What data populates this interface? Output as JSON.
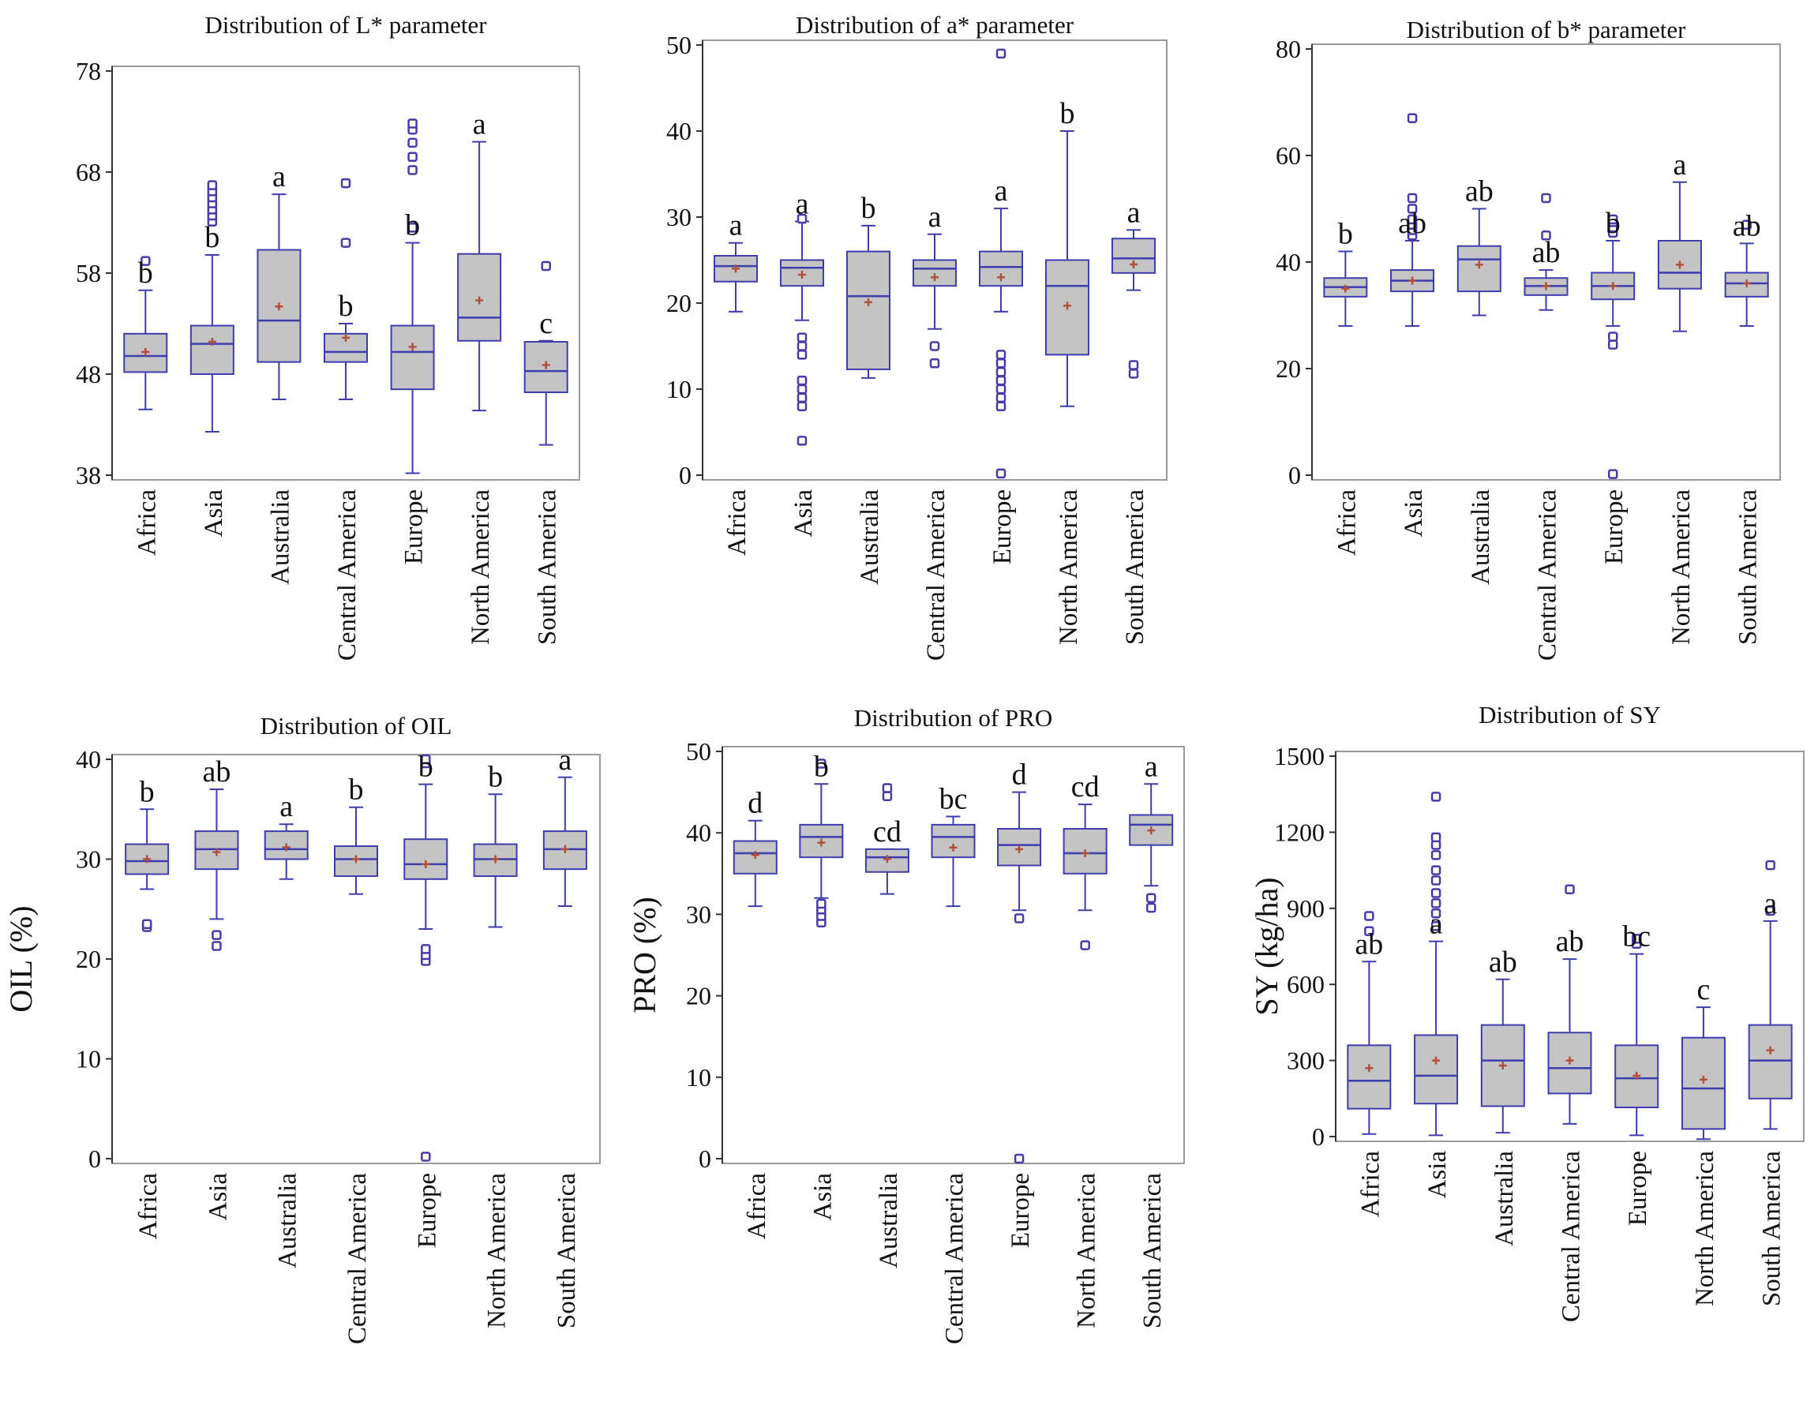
{
  "colors": {
    "box_fill": "#c4c4c4",
    "box_stroke": "#3d3dae",
    "outlier": "#4a3aa8",
    "mean": "#b0503c",
    "axis": "#333333",
    "frame": "#9a9a9a"
  },
  "chart_data": [
    {
      "type": "box",
      "title": "Distribution of  L* parameter",
      "ylabel": "",
      "ylim": [
        38,
        78
      ],
      "yticks": [
        "38",
        "48",
        "58",
        "68",
        "78"
      ],
      "categories": [
        "Africa",
        "Asia",
        "Australia",
        "Central America",
        "Europe",
        "North America",
        "South America"
      ],
      "boxes": [
        {
          "whisker_low": 44.5,
          "q1": 48.2,
          "median": 49.8,
          "q3": 52,
          "whisker_high": 56.3,
          "mean": 50.2,
          "outliers": [
            59.2
          ],
          "group": "b"
        },
        {
          "whisker_low": 42.3,
          "q1": 48,
          "median": 51,
          "q3": 52.8,
          "whisker_high": 59.8,
          "mean": 51.2,
          "outliers": [
            63.1,
            63.7,
            64.3,
            64.9,
            65.5,
            66.1,
            66.7
          ],
          "group": "b"
        },
        {
          "whisker_low": 45.5,
          "q1": 49.2,
          "median": 53.3,
          "q3": 60.3,
          "whisker_high": 65.8,
          "mean": 54.7,
          "outliers": [],
          "group": "a"
        },
        {
          "whisker_low": 45.5,
          "q1": 49.2,
          "median": 50.2,
          "q3": 52,
          "whisker_high": 53,
          "mean": 51.6,
          "outliers": [
            61,
            66.9
          ],
          "group": "b"
        },
        {
          "whisker_low": 38.2,
          "q1": 46.5,
          "median": 50.2,
          "q3": 52.8,
          "whisker_high": 61,
          "mean": 50.7,
          "outliers": [
            62.5,
            68.2,
            69.5,
            70.9,
            72.2,
            72.8
          ],
          "group": "b"
        },
        {
          "whisker_low": 44.4,
          "q1": 51.3,
          "median": 53.6,
          "q3": 59.9,
          "whisker_high": 71,
          "mean": 55.3,
          "outliers": [],
          "group": "a"
        },
        {
          "whisker_low": 41,
          "q1": 46.2,
          "median": 48.3,
          "q3": 51.2,
          "whisker_high": 51.3,
          "mean": 48.9,
          "outliers": [
            58.7
          ],
          "group": "c"
        }
      ]
    },
    {
      "type": "box",
      "title": "Distribution of a* parameter",
      "ylabel": "",
      "ylim": [
        0,
        50
      ],
      "yticks": [
        "0",
        "10",
        "20",
        "30",
        "40",
        "50"
      ],
      "categories": [
        "Africa",
        "Asia",
        "Australia",
        "Central America",
        "Europe",
        "North America",
        "South America"
      ],
      "boxes": [
        {
          "whisker_low": 19,
          "q1": 22.5,
          "median": 24.3,
          "q3": 25.5,
          "whisker_high": 27,
          "mean": 24,
          "outliers": [],
          "group": "a"
        },
        {
          "whisker_low": 18,
          "q1": 22,
          "median": 24.1,
          "q3": 25,
          "whisker_high": 29.5,
          "mean": 23.3,
          "outliers": [
            4,
            8,
            9,
            10,
            11,
            14,
            15,
            16,
            29.8
          ],
          "group": "a"
        },
        {
          "whisker_low": 11.3,
          "q1": 12.3,
          "median": 20.8,
          "q3": 26,
          "whisker_high": 29,
          "mean": 20.1,
          "outliers": [],
          "group": "b"
        },
        {
          "whisker_low": 17,
          "q1": 22,
          "median": 24,
          "q3": 25,
          "whisker_high": 28,
          "mean": 23,
          "outliers": [
            13,
            15
          ],
          "group": "a"
        },
        {
          "whisker_low": 19,
          "q1": 22,
          "median": 24.2,
          "q3": 26,
          "whisker_high": 31,
          "mean": 23,
          "outliers": [
            0.2,
            8,
            9,
            10,
            11,
            12,
            13,
            14,
            49
          ],
          "group": "a"
        },
        {
          "whisker_low": 8,
          "q1": 14,
          "median": 22,
          "q3": 25,
          "whisker_high": 40,
          "mean": 19.7,
          "outliers": [],
          "group": "b"
        },
        {
          "whisker_low": 21.5,
          "q1": 23.5,
          "median": 25.2,
          "q3": 27.5,
          "whisker_high": 28.5,
          "mean": 24.5,
          "outliers": [
            11.8,
            12.8
          ],
          "group": "a"
        }
      ]
    },
    {
      "type": "box",
      "title": "Distribution of b* parameter",
      "ylabel": "",
      "ylim": [
        0,
        80
      ],
      "yticks": [
        "0",
        "20",
        "40",
        "60",
        "80"
      ],
      "categories": [
        "Africa",
        "Asia",
        "Australia",
        "Central America",
        "Europe",
        "North America",
        "South America"
      ],
      "boxes": [
        {
          "whisker_low": 28,
          "q1": 33.5,
          "median": 35.3,
          "q3": 37,
          "whisker_high": 42,
          "mean": 35,
          "outliers": [],
          "group": "b"
        },
        {
          "whisker_low": 28,
          "q1": 34.5,
          "median": 36.5,
          "q3": 38.5,
          "whisker_high": 44,
          "mean": 36.5,
          "outliers": [
            45,
            46,
            47,
            48,
            50,
            52,
            67
          ],
          "group": "ab"
        },
        {
          "whisker_low": 30,
          "q1": 34.5,
          "median": 40.5,
          "q3": 43,
          "whisker_high": 50,
          "mean": 39.5,
          "outliers": [],
          "group": "ab"
        },
        {
          "whisker_low": 31,
          "q1": 33.8,
          "median": 35.5,
          "q3": 37,
          "whisker_high": 38.5,
          "mean": 35.5,
          "outliers": [
            45,
            52
          ],
          "group": "ab"
        },
        {
          "whisker_low": 28,
          "q1": 33,
          "median": 35.5,
          "q3": 38,
          "whisker_high": 44,
          "mean": 35.5,
          "outliers": [
            0.2,
            24.5,
            26,
            45.5,
            46.5,
            47.5,
            48
          ],
          "group": "b"
        },
        {
          "whisker_low": 27,
          "q1": 35,
          "median": 38,
          "q3": 44,
          "whisker_high": 55,
          "mean": 39.5,
          "outliers": [],
          "group": "a"
        },
        {
          "whisker_low": 28,
          "q1": 33.5,
          "median": 36,
          "q3": 38,
          "whisker_high": 43.5,
          "mean": 36,
          "outliers": [
            47
          ],
          "group": "ab"
        }
      ]
    },
    {
      "type": "box",
      "title": "Distribution of OIL",
      "ylabel": "OIL (%)",
      "ylim": [
        0,
        40
      ],
      "yticks": [
        "0",
        "10",
        "20",
        "30",
        "40"
      ],
      "categories": [
        "Africa",
        "Asia",
        "Australia",
        "Central America",
        "Europe",
        "North America",
        "South America"
      ],
      "boxes": [
        {
          "whisker_low": 27,
          "q1": 28.5,
          "median": 29.8,
          "q3": 31.5,
          "whisker_high": 35,
          "mean": 30,
          "outliers": [
            23.2,
            23.5
          ],
          "group": "b"
        },
        {
          "whisker_low": 24,
          "q1": 29,
          "median": 31,
          "q3": 32.8,
          "whisker_high": 37,
          "mean": 30.7,
          "outliers": [
            21.3,
            22.4
          ],
          "group": "ab"
        },
        {
          "whisker_low": 28,
          "q1": 30,
          "median": 31,
          "q3": 32.8,
          "whisker_high": 33.5,
          "mean": 31.2,
          "outliers": [],
          "group": "a"
        },
        {
          "whisker_low": 26.5,
          "q1": 28.3,
          "median": 30,
          "q3": 31.3,
          "whisker_high": 35.2,
          "mean": 30,
          "outliers": [],
          "group": "b"
        },
        {
          "whisker_low": 23,
          "q1": 28,
          "median": 29.5,
          "q3": 32,
          "whisker_high": 37.5,
          "mean": 29.5,
          "outliers": [
            0.2,
            19.8,
            20.4,
            21,
            39.6,
            40
          ],
          "group": "b"
        },
        {
          "whisker_low": 23.2,
          "q1": 28.3,
          "median": 30,
          "q3": 31.5,
          "whisker_high": 36.5,
          "mean": 30,
          "outliers": [],
          "group": "b"
        },
        {
          "whisker_low": 25.3,
          "q1": 29,
          "median": 31,
          "q3": 32.8,
          "whisker_high": 38.2,
          "mean": 31,
          "outliers": [],
          "group": "a"
        }
      ]
    },
    {
      "type": "box",
      "title": "Distribution of PRO",
      "ylabel": "PRO (%)",
      "ylim": [
        0,
        50
      ],
      "yticks": [
        "0",
        "10",
        "20",
        "30",
        "40",
        "50"
      ],
      "categories": [
        "Africa",
        "Asia",
        "Australia",
        "Central America",
        "Europe",
        "North America",
        "South America"
      ],
      "boxes": [
        {
          "whisker_low": 31,
          "q1": 35,
          "median": 37.5,
          "q3": 39,
          "whisker_high": 41.5,
          "mean": 37.3,
          "outliers": [],
          "group": "d"
        },
        {
          "whisker_low": 32,
          "q1": 37,
          "median": 39.5,
          "q3": 41,
          "whisker_high": 46,
          "mean": 38.8,
          "outliers": [
            29,
            29.8,
            30.6,
            31.3,
            48.5
          ],
          "group": "b"
        },
        {
          "whisker_low": 32.5,
          "q1": 35.2,
          "median": 37,
          "q3": 38,
          "whisker_high": 38,
          "mean": 36.8,
          "outliers": [
            44.5,
            45.5
          ],
          "group": "cd"
        },
        {
          "whisker_low": 31,
          "q1": 37,
          "median": 39.5,
          "q3": 41,
          "whisker_high": 42,
          "mean": 38.2,
          "outliers": [],
          "group": "bc"
        },
        {
          "whisker_low": 30.5,
          "q1": 36,
          "median": 38.5,
          "q3": 40.5,
          "whisker_high": 45,
          "mean": 38,
          "outliers": [
            0,
            29.5
          ],
          "group": "d"
        },
        {
          "whisker_low": 30.5,
          "q1": 35,
          "median": 37.5,
          "q3": 40.5,
          "whisker_high": 43.5,
          "mean": 37.5,
          "outliers": [
            26.2
          ],
          "group": "cd"
        },
        {
          "whisker_low": 33.5,
          "q1": 38.5,
          "median": 41,
          "q3": 42.2,
          "whisker_high": 46,
          "mean": 40.3,
          "outliers": [
            30.8,
            32
          ],
          "group": "a"
        }
      ]
    },
    {
      "type": "box",
      "title": "Distribution of SY",
      "ylabel": "SY (kg/ha)",
      "ylim": [
        0,
        1500
      ],
      "yticks": [
        "0",
        "300",
        "600",
        "900",
        "1200",
        "1500"
      ],
      "categories": [
        "Africa",
        "Asia",
        "Australia",
        "Central America",
        "Europe",
        "North America",
        "South America"
      ],
      "boxes": [
        {
          "whisker_low": 10,
          "q1": 110,
          "median": 220,
          "q3": 360,
          "whisker_high": 690,
          "mean": 270,
          "outliers": [
            810,
            870
          ],
          "group": "ab"
        },
        {
          "whisker_low": 5,
          "q1": 130,
          "median": 240,
          "q3": 400,
          "whisker_high": 770,
          "mean": 300,
          "outliers": [
            830,
            880,
            920,
            960,
            1010,
            1050,
            1110,
            1150,
            1180,
            1340
          ],
          "group": "a"
        },
        {
          "whisker_low": 15,
          "q1": 120,
          "median": 300,
          "q3": 440,
          "whisker_high": 620,
          "mean": 280,
          "outliers": [],
          "group": "ab"
        },
        {
          "whisker_low": 50,
          "q1": 170,
          "median": 270,
          "q3": 410,
          "whisker_high": 700,
          "mean": 300,
          "outliers": [
            975
          ],
          "group": "ab"
        },
        {
          "whisker_low": 5,
          "q1": 115,
          "median": 230,
          "q3": 360,
          "whisker_high": 720,
          "mean": 240,
          "outliers": [
            760,
            780
          ],
          "group": "bc"
        },
        {
          "whisker_low": -10,
          "q1": 30,
          "median": 190,
          "q3": 390,
          "whisker_high": 510,
          "mean": 225,
          "outliers": [],
          "group": "c"
        },
        {
          "whisker_low": 30,
          "q1": 150,
          "median": 300,
          "q3": 440,
          "whisker_high": 850,
          "mean": 340,
          "outliers": [
            890,
            1070
          ],
          "group": "a"
        }
      ]
    }
  ]
}
